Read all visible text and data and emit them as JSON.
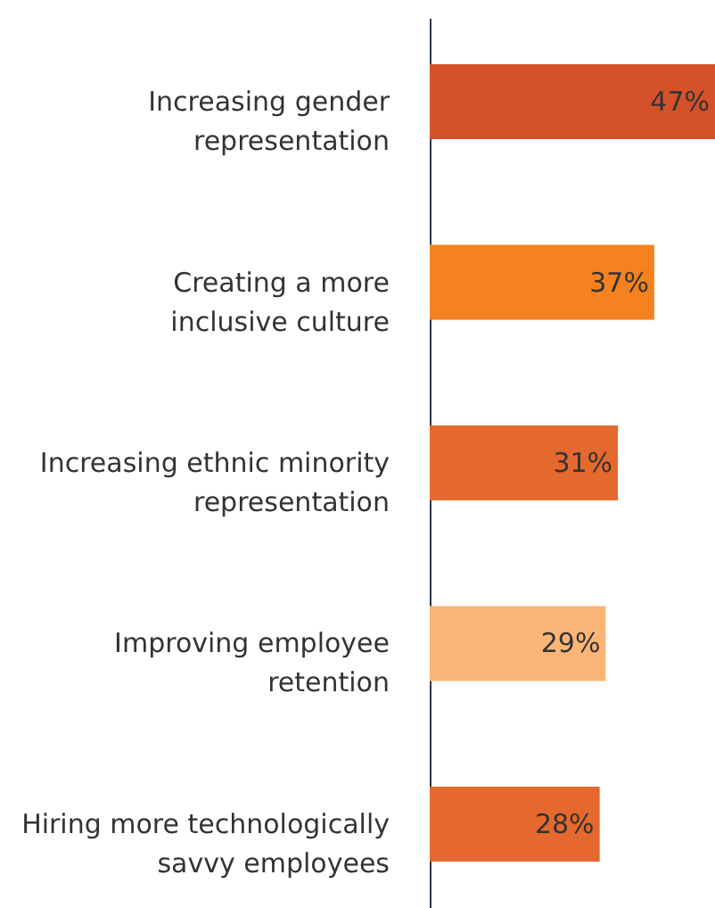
{
  "chart_data": {
    "type": "bar",
    "orientation": "horizontal",
    "categories": [
      "Increasing gender\nrepresentation",
      "Creating a more\ninclusive culture",
      "Increasing ethnic minority\nrepresentation",
      "Improving employee\nretention",
      "Hiring more technologically\nsavvy employees"
    ],
    "values": [
      47,
      37,
      31,
      29,
      28
    ],
    "colors": [
      "#d4512a",
      "#f5821f",
      "#e5682f",
      "#fbb577",
      "#e5682f"
    ],
    "value_labels": [
      "47%",
      "37%",
      "31%",
      "29%",
      "28%"
    ]
  }
}
